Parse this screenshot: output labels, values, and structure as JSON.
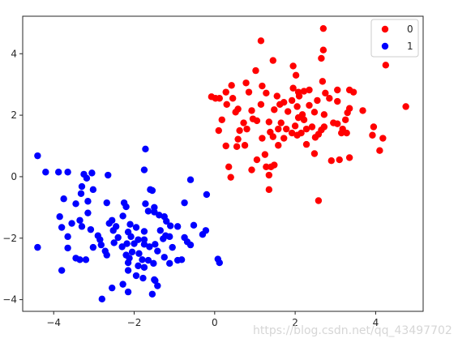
{
  "chart_data": {
    "type": "scatter",
    "title": "",
    "xlabel": "",
    "ylabel": "",
    "xlim": [
      -4.77,
      5.18
    ],
    "ylim": [
      -4.38,
      5.22
    ],
    "xticks": [
      -4,
      -2,
      0,
      2,
      4
    ],
    "yticks": [
      -4,
      -2,
      0,
      2,
      4
    ],
    "grid": false,
    "legend_placement": "top-right",
    "series": [
      {
        "name": "0",
        "color": "#ff0000",
        "points": [
          [
            1.15,
            4.42
          ],
          [
            2.7,
            4.82
          ],
          [
            2.7,
            4.12
          ],
          [
            2.65,
            3.85
          ],
          [
            4.25,
            3.63
          ],
          [
            1.45,
            3.78
          ],
          [
            1.95,
            3.6
          ],
          [
            1.02,
            3.45
          ],
          [
            2.02,
            3.3
          ],
          [
            0.42,
            2.97
          ],
          [
            0.78,
            3.05
          ],
          [
            1.18,
            2.95
          ],
          [
            2.68,
            3.1
          ],
          [
            3.05,
            2.82
          ],
          [
            2.35,
            2.82
          ],
          [
            3.35,
            2.82
          ],
          [
            3.45,
            2.75
          ],
          [
            0.85,
            2.75
          ],
          [
            1.28,
            2.72
          ],
          [
            2.75,
            2.72
          ],
          [
            2.85,
            2.55
          ],
          [
            1.95,
            2.88
          ],
          [
            2.08,
            2.75
          ],
          [
            2.22,
            2.78
          ],
          [
            0.28,
            2.75
          ],
          [
            0.12,
            2.55
          ],
          [
            1.55,
            2.62
          ],
          [
            1.62,
            2.35
          ],
          [
            2.1,
            2.62
          ],
          [
            1.92,
            2.48
          ],
          [
            1.72,
            2.42
          ],
          [
            2.05,
            2.28
          ],
          [
            2.55,
            2.48
          ],
          [
            -0.08,
            2.6
          ],
          [
            0.02,
            2.55
          ],
          [
            0.45,
            2.55
          ],
          [
            0.3,
            2.35
          ],
          [
            0.58,
            2.2
          ],
          [
            0.52,
            2.1
          ],
          [
            1.15,
            2.35
          ],
          [
            0.92,
            2.15
          ],
          [
            2.35,
            2.32
          ],
          [
            3.35,
            2.22
          ],
          [
            3.68,
            2.15
          ],
          [
            4.75,
            2.28
          ],
          [
            1.48,
            2.18
          ],
          [
            1.82,
            2.12
          ],
          [
            2.18,
            2.02
          ],
          [
            2.48,
            2.1
          ],
          [
            3.3,
            2.08
          ],
          [
            3.05,
            2.45
          ],
          [
            0.18,
            1.85
          ],
          [
            0.95,
            1.88
          ],
          [
            1.65,
            1.75
          ],
          [
            2.72,
            2.02
          ],
          [
            3.25,
            1.85
          ],
          [
            0.72,
            1.75
          ],
          [
            0.8,
            1.55
          ],
          [
            1.05,
            1.82
          ],
          [
            1.35,
            1.78
          ],
          [
            2.0,
            1.65
          ],
          [
            2.22,
            1.85
          ],
          [
            3.05,
            1.72
          ],
          [
            2.08,
            1.92
          ],
          [
            2.15,
            1.42
          ],
          [
            2.72,
            1.62
          ],
          [
            2.95,
            1.75
          ],
          [
            3.18,
            1.55
          ],
          [
            2.42,
            1.62
          ],
          [
            0.1,
            1.5
          ],
          [
            0.62,
            1.5
          ],
          [
            1.58,
            1.55
          ],
          [
            1.45,
            1.3
          ],
          [
            1.78,
            1.55
          ],
          [
            1.92,
            1.42
          ],
          [
            2.28,
            1.55
          ],
          [
            2.58,
            1.38
          ],
          [
            2.65,
            1.52
          ],
          [
            3.15,
            1.42
          ],
          [
            3.28,
            1.42
          ],
          [
            3.95,
            1.62
          ],
          [
            4.18,
            1.25
          ],
          [
            3.92,
            1.35
          ],
          [
            0.58,
            1.22
          ],
          [
            1.18,
            1.25
          ],
          [
            1.38,
            1.45
          ],
          [
            1.72,
            1.25
          ],
          [
            2.05,
            1.35
          ],
          [
            2.5,
            1.28
          ],
          [
            0.28,
            1.0
          ],
          [
            0.55,
            0.98
          ],
          [
            0.75,
            1.02
          ],
          [
            1.58,
            1.02
          ],
          [
            1.25,
            0.72
          ],
          [
            2.28,
            1.05
          ],
          [
            4.1,
            0.85
          ],
          [
            2.48,
            0.75
          ],
          [
            3.35,
            0.62
          ],
          [
            2.9,
            0.52
          ],
          [
            3.1,
            0.55
          ],
          [
            1.05,
            0.55
          ],
          [
            0.92,
            0.22
          ],
          [
            1.28,
            0.32
          ],
          [
            1.48,
            0.38
          ],
          [
            1.4,
            0.32
          ],
          [
            1.35,
            0.05
          ],
          [
            0.35,
            0.32
          ],
          [
            0.4,
            -0.02
          ],
          [
            1.35,
            -0.42
          ],
          [
            2.58,
            -0.78
          ]
        ]
      },
      {
        "name": "1",
        "color": "#0000ff",
        "points": [
          [
            -1.72,
            0.9
          ],
          [
            -4.4,
            0.68
          ],
          [
            -3.05,
            0.12
          ],
          [
            -3.25,
            0.08
          ],
          [
            -3.18,
            -0.05
          ],
          [
            -2.65,
            0.05
          ],
          [
            -3.65,
            0.15
          ],
          [
            -4.2,
            0.15
          ],
          [
            -3.88,
            0.15
          ],
          [
            -1.75,
            0.22
          ],
          [
            -0.6,
            -0.1
          ],
          [
            -3.02,
            -0.42
          ],
          [
            -3.3,
            -0.32
          ],
          [
            -3.32,
            -0.55
          ],
          [
            -2.68,
            -0.85
          ],
          [
            -2.25,
            -0.85
          ],
          [
            -1.55,
            -0.45
          ],
          [
            -1.6,
            -0.42
          ],
          [
            -1.72,
            -0.88
          ],
          [
            -2.2,
            -0.98
          ],
          [
            -3.75,
            -0.72
          ],
          [
            -3.45,
            -0.88
          ],
          [
            -3.15,
            -0.8
          ],
          [
            -1.5,
            -1.0
          ],
          [
            -0.75,
            -0.85
          ],
          [
            -0.2,
            -0.58
          ],
          [
            -1.5,
            -1.15
          ],
          [
            -1.65,
            -1.12
          ],
          [
            -3.15,
            -1.18
          ],
          [
            -3.35,
            -1.42
          ],
          [
            -3.85,
            -1.3
          ],
          [
            -3.55,
            -1.52
          ],
          [
            -3.8,
            -1.65
          ],
          [
            -2.55,
            -1.42
          ],
          [
            -2.28,
            -1.28
          ],
          [
            -1.38,
            -1.25
          ],
          [
            -1.25,
            -1.3
          ],
          [
            -1.2,
            -1.45
          ],
          [
            -2.1,
            -1.55
          ],
          [
            -2.62,
            -1.52
          ],
          [
            -2.52,
            -1.75
          ],
          [
            -2.45,
            -1.62
          ],
          [
            -3.3,
            -1.62
          ],
          [
            -3.08,
            -1.72
          ],
          [
            -2.9,
            -1.92
          ],
          [
            -2.15,
            -1.8
          ],
          [
            -1.95,
            -1.65
          ],
          [
            -1.75,
            -1.78
          ],
          [
            -1.1,
            -1.6
          ],
          [
            -0.92,
            -1.62
          ],
          [
            -0.52,
            -1.58
          ],
          [
            -1.35,
            -1.75
          ],
          [
            -1.22,
            -1.92
          ],
          [
            -0.22,
            -1.75
          ],
          [
            -0.3,
            -1.88
          ],
          [
            -3.65,
            -1.95
          ],
          [
            -2.85,
            -2.05
          ],
          [
            -2.4,
            -1.98
          ],
          [
            -2.08,
            -1.95
          ],
          [
            -1.9,
            -2.05
          ],
          [
            -1.75,
            -2.05
          ],
          [
            -1.28,
            -2.02
          ],
          [
            -1.12,
            -1.95
          ],
          [
            -1.48,
            -2.2
          ],
          [
            -0.75,
            -1.98
          ],
          [
            -0.68,
            -2.12
          ],
          [
            -0.6,
            -2.22
          ],
          [
            -4.4,
            -2.3
          ],
          [
            -3.65,
            -2.32
          ],
          [
            -3.02,
            -2.3
          ],
          [
            -2.82,
            -2.22
          ],
          [
            -2.5,
            -2.15
          ],
          [
            -2.3,
            -2.28
          ],
          [
            -2.18,
            -2.18
          ],
          [
            -2.0,
            -2.18
          ],
          [
            -1.75,
            -2.2
          ],
          [
            -1.62,
            -2.28
          ],
          [
            -1.42,
            -2.42
          ],
          [
            -1.05,
            -2.3
          ],
          [
            -2.05,
            -2.45
          ],
          [
            -2.2,
            -2.55
          ],
          [
            -1.88,
            -2.5
          ],
          [
            -2.68,
            -2.55
          ],
          [
            -2.72,
            -2.42
          ],
          [
            -3.45,
            -2.65
          ],
          [
            -3.35,
            -2.7
          ],
          [
            -3.2,
            -2.7
          ],
          [
            -1.8,
            -2.7
          ],
          [
            -1.65,
            -2.72
          ],
          [
            -2.12,
            -2.65
          ],
          [
            -1.25,
            -2.62
          ],
          [
            -0.82,
            -2.7
          ],
          [
            -2.15,
            -2.8
          ],
          [
            -1.9,
            -2.9
          ],
          [
            -1.75,
            -2.95
          ],
          [
            -1.52,
            -2.82
          ],
          [
            -1.12,
            -2.82
          ],
          [
            -0.92,
            -2.72
          ],
          [
            0.08,
            -2.68
          ],
          [
            0.12,
            -2.8
          ],
          [
            -3.8,
            -3.05
          ],
          [
            -2.15,
            -3.05
          ],
          [
            -1.95,
            -3.22
          ],
          [
            -1.78,
            -3.3
          ],
          [
            -1.5,
            -3.35
          ],
          [
            -1.48,
            -3.38
          ],
          [
            -1.42,
            -3.55
          ],
          [
            -2.28,
            -3.5
          ],
          [
            -2.55,
            -3.62
          ],
          [
            -1.55,
            -3.82
          ],
          [
            -2.15,
            -3.75
          ],
          [
            -2.8,
            -3.98
          ]
        ]
      }
    ]
  },
  "watermark": "https://blog.csdn.net/qq_43497702"
}
